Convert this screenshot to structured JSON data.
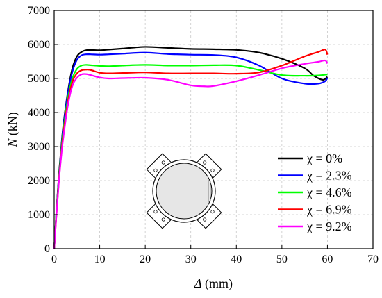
{
  "chart_data": {
    "type": "line",
    "xlabel_symbol": "Δ",
    "xlabel_unit": " (mm)",
    "ylabel_symbol": "N",
    "ylabel_unit": " (kN)",
    "xlim": [
      0,
      70
    ],
    "ylim": [
      0,
      7000
    ],
    "xticks": [
      0,
      10,
      20,
      30,
      40,
      50,
      60,
      70
    ],
    "yticks": [
      0,
      1000,
      2000,
      3000,
      4000,
      5000,
      6000,
      7000
    ],
    "grid": true,
    "legend_position": "bottom-right",
    "series": [
      {
        "name": "χ = 0%",
        "color": "#000000",
        "x": [
          0,
          0.5,
          1,
          1.5,
          2,
          3,
          4,
          5,
          6,
          7,
          8,
          10,
          12,
          15,
          20,
          25,
          30,
          35,
          40,
          45,
          50,
          55,
          57,
          59,
          60
        ],
        "y": [
          0,
          1100,
          2100,
          2900,
          3600,
          4600,
          5300,
          5650,
          5780,
          5830,
          5840,
          5830,
          5850,
          5880,
          5930,
          5900,
          5870,
          5860,
          5840,
          5760,
          5580,
          5300,
          5080,
          4960,
          5050
        ]
      },
      {
        "name": "χ = 2.3%",
        "color": "#0000ff",
        "x": [
          0,
          0.5,
          1,
          1.5,
          2,
          3,
          4,
          5,
          6,
          7,
          8,
          10,
          12,
          15,
          20,
          25,
          30,
          35,
          40,
          45,
          50,
          55,
          58,
          59.5,
          60
        ],
        "y": [
          0,
          1080,
          2050,
          2850,
          3550,
          4550,
          5200,
          5550,
          5680,
          5710,
          5710,
          5700,
          5710,
          5730,
          5760,
          5720,
          5700,
          5690,
          5620,
          5380,
          5000,
          4850,
          4850,
          4920,
          5020
        ]
      },
      {
        "name": "χ = 4.6%",
        "color": "#00ff00",
        "x": [
          0,
          0.5,
          1,
          1.5,
          2,
          3,
          4,
          5,
          6,
          7,
          8,
          10,
          12,
          15,
          20,
          25,
          30,
          35,
          40,
          45,
          50,
          55,
          58,
          60
        ],
        "y": [
          0,
          1050,
          2000,
          2780,
          3450,
          4400,
          5000,
          5280,
          5380,
          5400,
          5390,
          5370,
          5360,
          5380,
          5400,
          5380,
          5380,
          5390,
          5380,
          5250,
          5100,
          5080,
          5090,
          5120
        ]
      },
      {
        "name": "χ = 6.9%",
        "color": "#ff0000",
        "x": [
          0,
          0.5,
          1,
          1.5,
          2,
          3,
          4,
          5,
          6,
          7,
          8,
          10,
          12,
          15,
          20,
          25,
          30,
          35,
          40,
          45,
          50,
          55,
          58,
          59.5,
          60
        ],
        "y": [
          0,
          1000,
          1950,
          2700,
          3350,
          4300,
          4900,
          5150,
          5240,
          5260,
          5250,
          5170,
          5150,
          5160,
          5180,
          5150,
          5150,
          5150,
          5140,
          5180,
          5380,
          5650,
          5780,
          5850,
          5700
        ]
      },
      {
        "name": "χ = 9.2%",
        "color": "#ff00ff",
        "x": [
          0,
          0.5,
          1,
          1.5,
          2,
          3,
          4,
          5,
          6,
          7,
          8,
          10,
          12,
          15,
          20,
          25,
          30,
          33,
          35,
          40,
          45,
          50,
          55,
          58,
          59.5,
          60
        ],
        "y": [
          0,
          980,
          1900,
          2650,
          3250,
          4200,
          4780,
          5020,
          5120,
          5130,
          5100,
          5030,
          5000,
          5010,
          5020,
          4960,
          4800,
          4770,
          4780,
          4920,
          5100,
          5300,
          5430,
          5490,
          5530,
          5440
        ]
      }
    ]
  }
}
